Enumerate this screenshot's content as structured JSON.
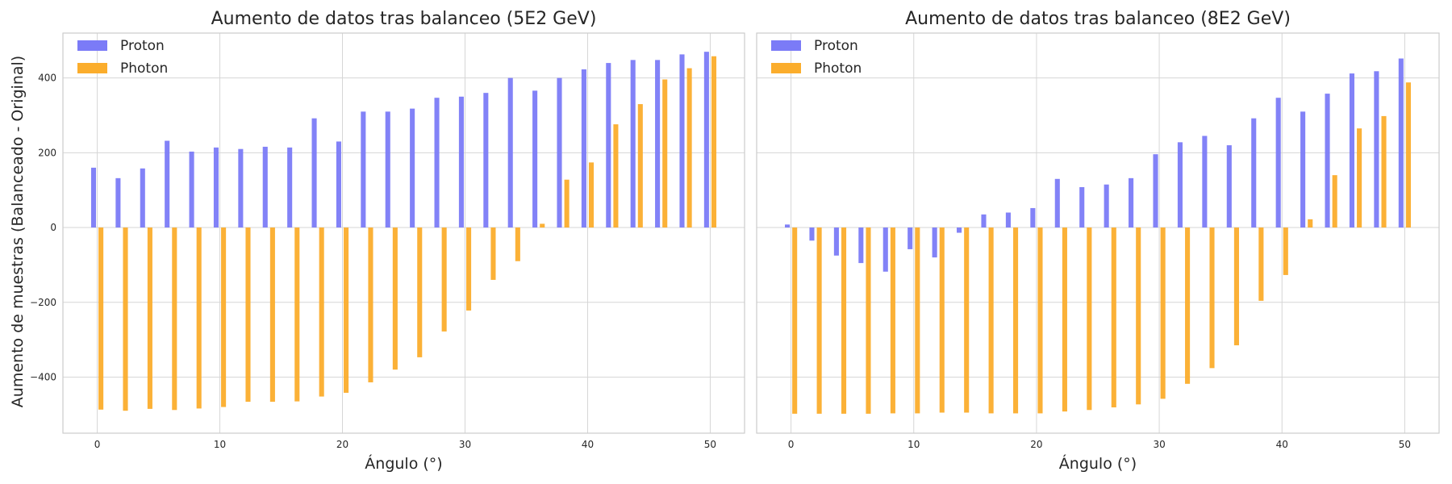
{
  "ylabel": "Aumento de muestras (Balanceado - Original)",
  "colors": {
    "proton": "#7b7bf7",
    "photon": "#fbad2c",
    "grid": "#d6d6d6",
    "spine": "#cccccc"
  },
  "chart_data": [
    {
      "type": "bar",
      "title": "Aumento de datos tras balanceo (5E2 GeV)",
      "xlabel": "Ángulo (°)",
      "ylabel": "Aumento de muestras (Balanceado - Original)",
      "legend_position": "top-left",
      "grid": true,
      "xlim": [
        -2.8,
        52.8
      ],
      "ylim": [
        -550,
        520
      ],
      "xticks": [
        0,
        10,
        20,
        30,
        40,
        50
      ],
      "yticks": [
        -400,
        -200,
        0,
        200,
        400
      ],
      "x": [
        0,
        2,
        4,
        6,
        8,
        10,
        12,
        14,
        16,
        18,
        20,
        22,
        24,
        26,
        28,
        30,
        32,
        34,
        36,
        38,
        40,
        42,
        44,
        46,
        48,
        50
      ],
      "series": [
        {
          "name": "Proton",
          "values": [
            160,
            132,
            158,
            232,
            203,
            214,
            210,
            216,
            214,
            292,
            230,
            310,
            310,
            318,
            347,
            350,
            360,
            400,
            366,
            400,
            423,
            440,
            448,
            448,
            463,
            470
          ]
        },
        {
          "name": "Photon",
          "values": [
            -487,
            -490,
            -485,
            -488,
            -484,
            -480,
            -466,
            -466,
            -465,
            -452,
            -442,
            -414,
            -380,
            -347,
            -278,
            -222,
            -140,
            -90,
            10,
            128,
            174,
            276,
            330,
            396,
            426,
            458
          ]
        }
      ]
    },
    {
      "type": "bar",
      "title": "Aumento de datos tras balanceo (8E2 GeV)",
      "xlabel": "Ángulo (°)",
      "legend_position": "top-left",
      "grid": true,
      "xlim": [
        -2.8,
        52.8
      ],
      "ylim": [
        -550,
        520
      ],
      "xticks": [
        0,
        10,
        20,
        30,
        40,
        50
      ],
      "yticks": [
        -400,
        -200,
        0,
        200,
        400
      ],
      "x": [
        0,
        2,
        4,
        6,
        8,
        10,
        12,
        14,
        16,
        18,
        20,
        22,
        24,
        26,
        28,
        30,
        32,
        34,
        36,
        38,
        40,
        42,
        44,
        46,
        48,
        50
      ],
      "series": [
        {
          "name": "Proton",
          "values": [
            8,
            -35,
            -75,
            -95,
            -118,
            -58,
            -80,
            -14,
            35,
            40,
            52,
            130,
            108,
            115,
            132,
            196,
            228,
            245,
            220,
            292,
            347,
            310,
            358,
            412,
            418,
            452
          ]
        },
        {
          "name": "Photon",
          "values": [
            -498,
            -498,
            -498,
            -498,
            -497,
            -497,
            -495,
            -495,
            -497,
            -497,
            -497,
            -492,
            -488,
            -481,
            -473,
            -458,
            -418,
            -376,
            -315,
            -196,
            -127,
            22,
            140,
            265,
            298,
            388
          ]
        }
      ]
    }
  ]
}
